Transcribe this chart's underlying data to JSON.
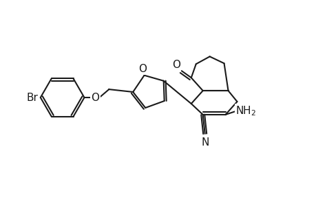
{
  "bg_color": "#ffffff",
  "line_color": "#1a1a1a",
  "line_width": 1.5,
  "font_size": 11,
  "figsize": [
    4.6,
    3.0
  ],
  "dpi": 100,
  "xlim": [
    0,
    460
  ],
  "ylim": [
    0,
    300
  ]
}
